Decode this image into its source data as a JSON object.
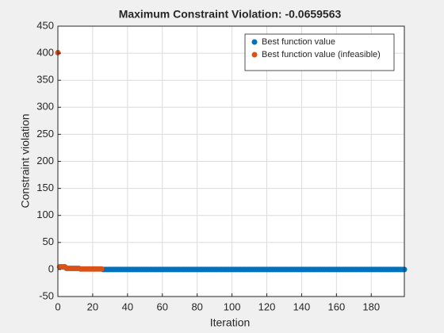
{
  "chart_data": {
    "type": "scatter",
    "title": "Maximum Constraint Violation: -0.0659563",
    "xlabel": "Iteration",
    "ylabel": "Constraint violation",
    "xlim": [
      0,
      199
    ],
    "ylim": [
      -50,
      450
    ],
    "xticks": [
      0,
      20,
      40,
      60,
      80,
      100,
      120,
      140,
      160,
      180
    ],
    "yticks": [
      -50,
      0,
      50,
      100,
      150,
      200,
      250,
      300,
      350,
      400,
      450
    ],
    "grid": true,
    "legend": "northeast",
    "series": [
      {
        "name": "Best function value",
        "color": "#0072bd",
        "x": [
          26,
          27,
          28,
          29,
          30,
          31,
          32,
          33,
          34,
          35,
          36,
          37,
          38,
          39,
          40,
          41,
          42,
          43,
          44,
          45,
          46,
          47,
          48,
          49,
          50,
          51,
          52,
          53,
          54,
          55,
          56,
          57,
          58,
          59,
          60,
          61,
          62,
          63,
          64,
          65,
          66,
          67,
          68,
          69,
          70,
          71,
          72,
          73,
          74,
          75,
          76,
          77,
          78,
          79,
          80,
          81,
          82,
          83,
          84,
          85,
          86,
          87,
          88,
          89,
          90,
          91,
          92,
          93,
          94,
          95,
          96,
          97,
          98,
          99,
          100,
          101,
          102,
          103,
          104,
          105,
          106,
          107,
          108,
          109,
          110,
          111,
          112,
          113,
          114,
          115,
          116,
          117,
          118,
          119,
          120,
          121,
          122,
          123,
          124,
          125,
          126,
          127,
          128,
          129,
          130,
          131,
          132,
          133,
          134,
          135,
          136,
          137,
          138,
          139,
          140,
          141,
          142,
          143,
          144,
          145,
          146,
          147,
          148,
          149,
          150,
          151,
          152,
          153,
          154,
          155,
          156,
          157,
          158,
          159,
          160,
          161,
          162,
          163,
          164,
          165,
          166,
          167,
          168,
          169,
          170,
          171,
          172,
          173,
          174,
          175,
          176,
          177,
          178,
          179,
          180,
          181,
          182,
          183,
          184,
          185,
          186,
          187,
          188,
          189,
          190,
          191,
          192,
          193,
          194,
          195,
          196,
          197,
          198,
          199
        ],
        "values": [
          0,
          0,
          0,
          0,
          0,
          0,
          0,
          0,
          0,
          0,
          0,
          0,
          0,
          0,
          0,
          0,
          0,
          0,
          0,
          0,
          0,
          0,
          0,
          0,
          0,
          0,
          0,
          0,
          0,
          0,
          0,
          0,
          0,
          0,
          0,
          0,
          0,
          0,
          0,
          0,
          0,
          0,
          0,
          0,
          0,
          0,
          0,
          0,
          0,
          0,
          0,
          0,
          0,
          0,
          0,
          0,
          0,
          0,
          0,
          0,
          0,
          0,
          0,
          0,
          0,
          0,
          0,
          0,
          0,
          0,
          0,
          0,
          0,
          0,
          0,
          0,
          0,
          0,
          0,
          0,
          0,
          0,
          0,
          0,
          0,
          0,
          0,
          0,
          0,
          0,
          0,
          0,
          0,
          0,
          0,
          0,
          0,
          0,
          0,
          0,
          0,
          0,
          0,
          0,
          0,
          0,
          0,
          0,
          0,
          0,
          0,
          0,
          0,
          0,
          0,
          0,
          0,
          0,
          0,
          0,
          0,
          0,
          0,
          0,
          0,
          0,
          0,
          0,
          0,
          0,
          0,
          0,
          0,
          0,
          0,
          0,
          0,
          0,
          0,
          0,
          0,
          0,
          0,
          0,
          0,
          0,
          0,
          0,
          0,
          0,
          0,
          0,
          0,
          0,
          0,
          0,
          0,
          0,
          0,
          0,
          0,
          0,
          0,
          0,
          0,
          0,
          0,
          0,
          0,
          0,
          0,
          0,
          0,
          0
        ]
      },
      {
        "name": "Best function value (infeasible)",
        "color": "#d95319",
        "x": [
          0,
          1,
          2,
          3,
          4,
          5,
          6,
          7,
          8,
          9,
          10,
          11,
          12,
          13,
          14,
          15,
          16,
          17,
          18,
          19,
          20,
          21,
          22,
          23,
          24,
          25
        ],
        "values": [
          401,
          5,
          5,
          5,
          5,
          2,
          2,
          2,
          2,
          2,
          2,
          2,
          2,
          1,
          1,
          1,
          1,
          1,
          1,
          1,
          1,
          1,
          1,
          1,
          1,
          1
        ]
      }
    ]
  }
}
